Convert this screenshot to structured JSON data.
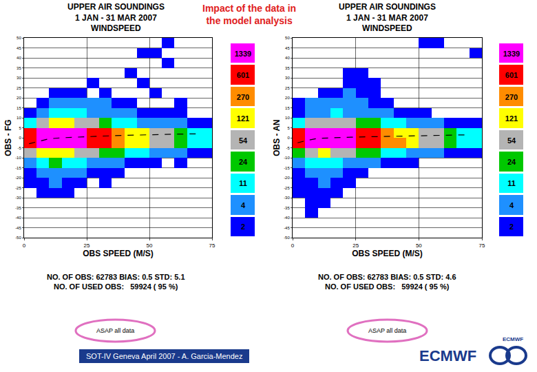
{
  "header": {
    "title": [
      "Impact of the data in",
      "the model analysis"
    ]
  },
  "footer": {
    "credit": "SOT-IV Geneva April 2007 - A. Garcia-Mendez",
    "logo": "ECMWF",
    "logo_small": "ECMWF"
  },
  "chart_data": [
    {
      "type": "heatmap",
      "title": [
        "UPPER AIR SOUNDINGS",
        "1 JAN - 31 MAR 2007",
        "WINDSPEED"
      ],
      "xlabel": "OBS SPEED (M/S)",
      "ylabel": "OBS - FG",
      "xlim": [
        0,
        75
      ],
      "xticks": [
        0,
        25,
        50,
        75
      ],
      "ylim": [
        -50,
        50
      ],
      "yticks": [
        -50,
        -45,
        -40,
        -35,
        -30,
        -25,
        -20,
        -15,
        -10,
        -5,
        0,
        5,
        10,
        15,
        20,
        25,
        30,
        35,
        40,
        45,
        50
      ],
      "grid": true,
      "x_bins": [
        0,
        5,
        10,
        15,
        20,
        25,
        30,
        35,
        40,
        45,
        50,
        55,
        60,
        65,
        70,
        75
      ],
      "y_bins": [
        -50,
        -45,
        -40,
        -35,
        -30,
        -25,
        -20,
        -15,
        -10,
        -5,
        0,
        5,
        10,
        15,
        20,
        25,
        30,
        35,
        40,
        45,
        50
      ],
      "cells": [
        [
          null,
          null,
          null,
          null,
          null,
          null,
          null,
          null,
          null,
          null,
          null,
          null,
          null,
          null,
          null
        ],
        [
          null,
          null,
          null,
          null,
          null,
          null,
          null,
          null,
          null,
          null,
          null,
          null,
          null,
          null,
          null
        ],
        [
          null,
          null,
          null,
          null,
          null,
          null,
          null,
          null,
          null,
          null,
          null,
          null,
          null,
          null,
          null
        ],
        [
          null,
          null,
          null,
          null,
          null,
          null,
          null,
          null,
          null,
          null,
          null,
          null,
          null,
          null,
          null
        ],
        [
          null,
          2,
          3,
          2,
          null,
          null,
          null,
          null,
          null,
          null,
          null,
          null,
          null,
          null,
          null
        ],
        [
          2,
          3,
          4,
          3,
          2,
          null,
          2,
          null,
          null,
          null,
          null,
          null,
          null,
          null,
          null
        ],
        [
          3,
          6,
          8,
          6,
          4,
          3,
          2,
          2,
          null,
          null,
          null,
          null,
          null,
          null,
          null
        ],
        [
          8,
          20,
          25,
          20,
          14,
          9,
          6,
          4,
          3,
          2,
          2,
          null,
          2,
          null,
          null
        ],
        [
          60,
          150,
          200,
          170,
          120,
          80,
          50,
          30,
          20,
          12,
          8,
          5,
          4,
          3,
          2
        ],
        [
          900,
          1700,
          1900,
          1700,
          1450,
          950,
          650,
          420,
          260,
          160,
          105,
          62,
          42,
          22,
          12
        ],
        [
          700,
          1500,
          1800,
          1600,
          1400,
          900,
          620,
          400,
          250,
          150,
          100,
          60,
          40,
          20,
          12
        ],
        [
          20,
          80,
          150,
          130,
          90,
          60,
          35,
          22,
          15,
          10,
          7,
          5,
          4,
          3,
          2
        ],
        [
          3,
          9,
          14,
          15,
          12,
          9,
          6,
          5,
          4,
          3,
          2,
          2,
          2,
          null,
          null
        ],
        [
          null,
          3,
          6,
          8,
          7,
          5,
          4,
          3,
          2,
          null,
          null,
          null,
          2,
          null,
          null
        ],
        [
          null,
          null,
          2,
          3,
          3,
          null,
          2,
          null,
          null,
          null,
          2,
          null,
          null,
          null,
          null
        ],
        [
          null,
          null,
          null,
          null,
          null,
          2,
          null,
          null,
          null,
          3,
          null,
          null,
          null,
          null,
          null
        ],
        [
          null,
          null,
          null,
          null,
          null,
          null,
          null,
          null,
          2,
          null,
          null,
          null,
          null,
          null,
          null
        ],
        [
          null,
          null,
          null,
          null,
          null,
          null,
          null,
          null,
          null,
          null,
          null,
          2,
          null,
          null,
          null
        ],
        [
          null,
          null,
          null,
          null,
          null,
          null,
          null,
          null,
          null,
          2,
          2,
          null,
          null,
          null,
          null
        ],
        [
          null,
          null,
          null,
          null,
          null,
          null,
          null,
          null,
          null,
          null,
          null,
          2,
          null,
          null,
          null
        ]
      ],
      "colorbar": {
        "ticks": [
          2,
          4,
          11,
          24,
          54,
          121,
          270,
          601,
          1339
        ],
        "colors": [
          "#0000ff",
          "#1e90ff",
          "#00ffff",
          "#00c800",
          "#b4b4b4",
          "#ffff00",
          "#ff8c00",
          "#ff0000",
          "#ff00ff"
        ]
      },
      "mean_line": {
        "x": [
          2,
          5,
          10,
          15,
          20,
          30,
          40,
          50,
          60,
          70
        ],
        "values": [
          -3,
          -2,
          -0.5,
          0,
          0.3,
          0.8,
          1.2,
          1.6,
          1.8,
          2
        ],
        "color": "#000000",
        "line_style": "dash"
      },
      "stats": [
        "NO. OF OBS: 62783 BIAS: 0.5 STD: 5.1",
        "NO. OF USED OBS:   59924 ( 95 %)"
      ],
      "annotation": "ASAP all data"
    },
    {
      "type": "heatmap",
      "title": [
        "UPPER AIR SOUNDINGS",
        "1 JAN - 31 MAR 2007",
        "WINDSPEED"
      ],
      "xlabel": "OBS SPEED (M/S)",
      "ylabel": "OBS - AN",
      "xlim": [
        0,
        75
      ],
      "xticks": [
        0,
        25,
        50,
        75
      ],
      "ylim": [
        -50,
        50
      ],
      "yticks": [
        -50,
        -45,
        -40,
        -35,
        -30,
        -25,
        -20,
        -15,
        -10,
        -5,
        0,
        5,
        10,
        15,
        20,
        25,
        30,
        35,
        40,
        45,
        50
      ],
      "grid": true,
      "x_bins": [
        0,
        5,
        10,
        15,
        20,
        25,
        30,
        35,
        40,
        45,
        50,
        55,
        60,
        65,
        70,
        75
      ],
      "y_bins": [
        -50,
        -45,
        -40,
        -35,
        -30,
        -25,
        -20,
        -15,
        -10,
        -5,
        0,
        5,
        10,
        15,
        20,
        25,
        30,
        35,
        40,
        45,
        50
      ],
      "cells": [
        [
          null,
          null,
          null,
          null,
          null,
          null,
          null,
          null,
          null,
          null,
          null,
          null,
          null,
          null,
          null
        ],
        [
          null,
          null,
          null,
          null,
          null,
          null,
          null,
          null,
          null,
          null,
          null,
          null,
          null,
          null,
          null
        ],
        [
          null,
          2,
          null,
          null,
          null,
          null,
          null,
          null,
          null,
          null,
          null,
          null,
          null,
          null,
          null
        ],
        [
          null,
          2,
          2,
          null,
          null,
          null,
          null,
          null,
          null,
          null,
          null,
          null,
          null,
          null,
          null
        ],
        [
          2,
          2,
          3,
          2,
          null,
          null,
          null,
          null,
          null,
          null,
          null,
          null,
          null,
          null,
          null
        ],
        [
          2,
          3,
          4,
          3,
          2,
          null,
          null,
          null,
          null,
          null,
          null,
          null,
          null,
          null,
          null
        ],
        [
          3,
          5,
          6,
          5,
          3,
          2,
          null,
          null,
          null,
          null,
          null,
          null,
          null,
          null,
          null
        ],
        [
          6,
          15,
          18,
          14,
          10,
          6,
          4,
          3,
          2,
          2,
          null,
          null,
          null,
          null,
          null
        ],
        [
          40,
          110,
          150,
          120,
          80,
          50,
          32,
          20,
          14,
          9,
          6,
          4,
          3,
          2,
          2
        ],
        [
          950,
          1750,
          2000,
          1800,
          1500,
          1000,
          680,
          430,
          270,
          165,
          110,
          65,
          44,
          23,
          13
        ],
        [
          800,
          1600,
          1900,
          1700,
          1450,
          950,
          650,
          420,
          260,
          160,
          105,
          62,
          42,
          22,
          12
        ],
        [
          15,
          60,
          110,
          100,
          70,
          45,
          28,
          18,
          12,
          8,
          6,
          4,
          3,
          2,
          2
        ],
        [
          3,
          7,
          10,
          12,
          10,
          8,
          5,
          4,
          3,
          2,
          2,
          null,
          null,
          null,
          null
        ],
        [
          2,
          4,
          6,
          7,
          5,
          4,
          3,
          2,
          null,
          null,
          null,
          null,
          null,
          null,
          null
        ],
        [
          null,
          null,
          2,
          3,
          4,
          3,
          2,
          null,
          null,
          null,
          null,
          null,
          null,
          null,
          null
        ],
        [
          null,
          null,
          null,
          null,
          2,
          3,
          2,
          null,
          null,
          null,
          null,
          null,
          null,
          null,
          null
        ],
        [
          null,
          null,
          null,
          null,
          2,
          2,
          null,
          null,
          null,
          null,
          null,
          null,
          null,
          null,
          null
        ],
        [
          null,
          null,
          null,
          null,
          null,
          null,
          null,
          null,
          null,
          null,
          null,
          null,
          null,
          null,
          null
        ],
        [
          null,
          null,
          null,
          null,
          null,
          null,
          null,
          null,
          null,
          null,
          null,
          null,
          null,
          null,
          2
        ],
        [
          null,
          null,
          null,
          null,
          null,
          null,
          null,
          null,
          null,
          null,
          2,
          2,
          null,
          null,
          null
        ]
      ],
      "colorbar": {
        "ticks": [
          2,
          4,
          11,
          24,
          54,
          121,
          270,
          601,
          1339
        ],
        "colors": [
          "#0000ff",
          "#1e90ff",
          "#00ffff",
          "#00c800",
          "#b4b4b4",
          "#ffff00",
          "#ff8c00",
          "#ff0000",
          "#ff00ff"
        ]
      },
      "mean_line": {
        "x": [
          2,
          5,
          10,
          15,
          20,
          30,
          40,
          50,
          60,
          70
        ],
        "values": [
          -2.5,
          -1.5,
          -0.3,
          0,
          0.2,
          0.5,
          0.8,
          1.1,
          1.3,
          1.5
        ],
        "color": "#000000",
        "line_style": "dash"
      },
      "stats": [
        "NO. OF OBS: 62783 BIAS: 0.5 STD: 4.6",
        "NO. OF USED OBS:   59924 ( 95 %)"
      ],
      "annotation": "ASAP all data"
    }
  ]
}
